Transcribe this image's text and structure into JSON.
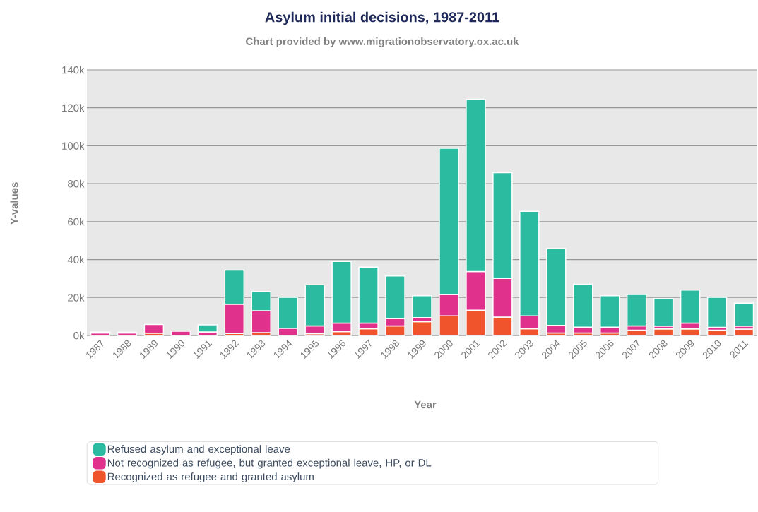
{
  "chart_data": {
    "type": "bar",
    "title": "Asylum initial decisions, 1987-2011",
    "subtitle": "Chart provided by www.migrationobservatory.ox.ac.uk",
    "xlabel": "Year",
    "ylabel": "Y-values",
    "categories": [
      "1987",
      "1988",
      "1989",
      "1990",
      "1991",
      "1992",
      "1993",
      "1994",
      "1995",
      "1996",
      "1997",
      "1998",
      "1999",
      "2000",
      "2001",
      "2002",
      "2003",
      "2004",
      "2005",
      "2006",
      "2007",
      "2008",
      "2009",
      "2010",
      "2011"
    ],
    "stacked": true,
    "legend": "bottom",
    "grid": "y",
    "ylim": [
      0,
      140000
    ],
    "yticks": [
      {
        "value": 0,
        "label": "0k"
      },
      {
        "value": 20000,
        "label": "20k"
      },
      {
        "value": 40000,
        "label": "40k"
      },
      {
        "value": 60000,
        "label": "60k"
      },
      {
        "value": 80000,
        "label": "80k"
      },
      {
        "value": 100000,
        "label": "100k"
      },
      {
        "value": 120000,
        "label": "120k"
      },
      {
        "value": 140000,
        "label": "140k"
      }
    ],
    "series": [
      {
        "name": "Recognized as refugee and granted asylum",
        "color": "#f0542d",
        "values": [
          null,
          null,
          1200,
          null,
          null,
          1000,
          1500,
          null,
          900,
          2000,
          3500,
          5000,
          7300,
          10300,
          13300,
          9700,
          3500,
          1300,
          1300,
          1300,
          2800,
          3400,
          3400,
          2800,
          3300
        ]
      },
      {
        "name": "Not recognized as refugee, but granted exceptional leave, HP, or DL",
        "color": "#e0318d",
        "values": [
          1300,
          1300,
          4600,
          2200,
          1900,
          15500,
          11500,
          3800,
          4100,
          4500,
          3000,
          3800,
          2100,
          11300,
          20400,
          20400,
          6800,
          4000,
          3100,
          3100,
          2200,
          1500,
          3100,
          1500,
          1600
        ]
      },
      {
        "name": "Refused asylum and exceptional leave",
        "color": "#2bbba0",
        "values": [
          500,
          400,
          null,
          null,
          3700,
          17900,
          10200,
          16300,
          21700,
          32500,
          29500,
          22600,
          11500,
          77100,
          90800,
          55700,
          55100,
          40500,
          22600,
          16500,
          16600,
          14500,
          17400,
          15800,
          12100
        ]
      }
    ]
  }
}
